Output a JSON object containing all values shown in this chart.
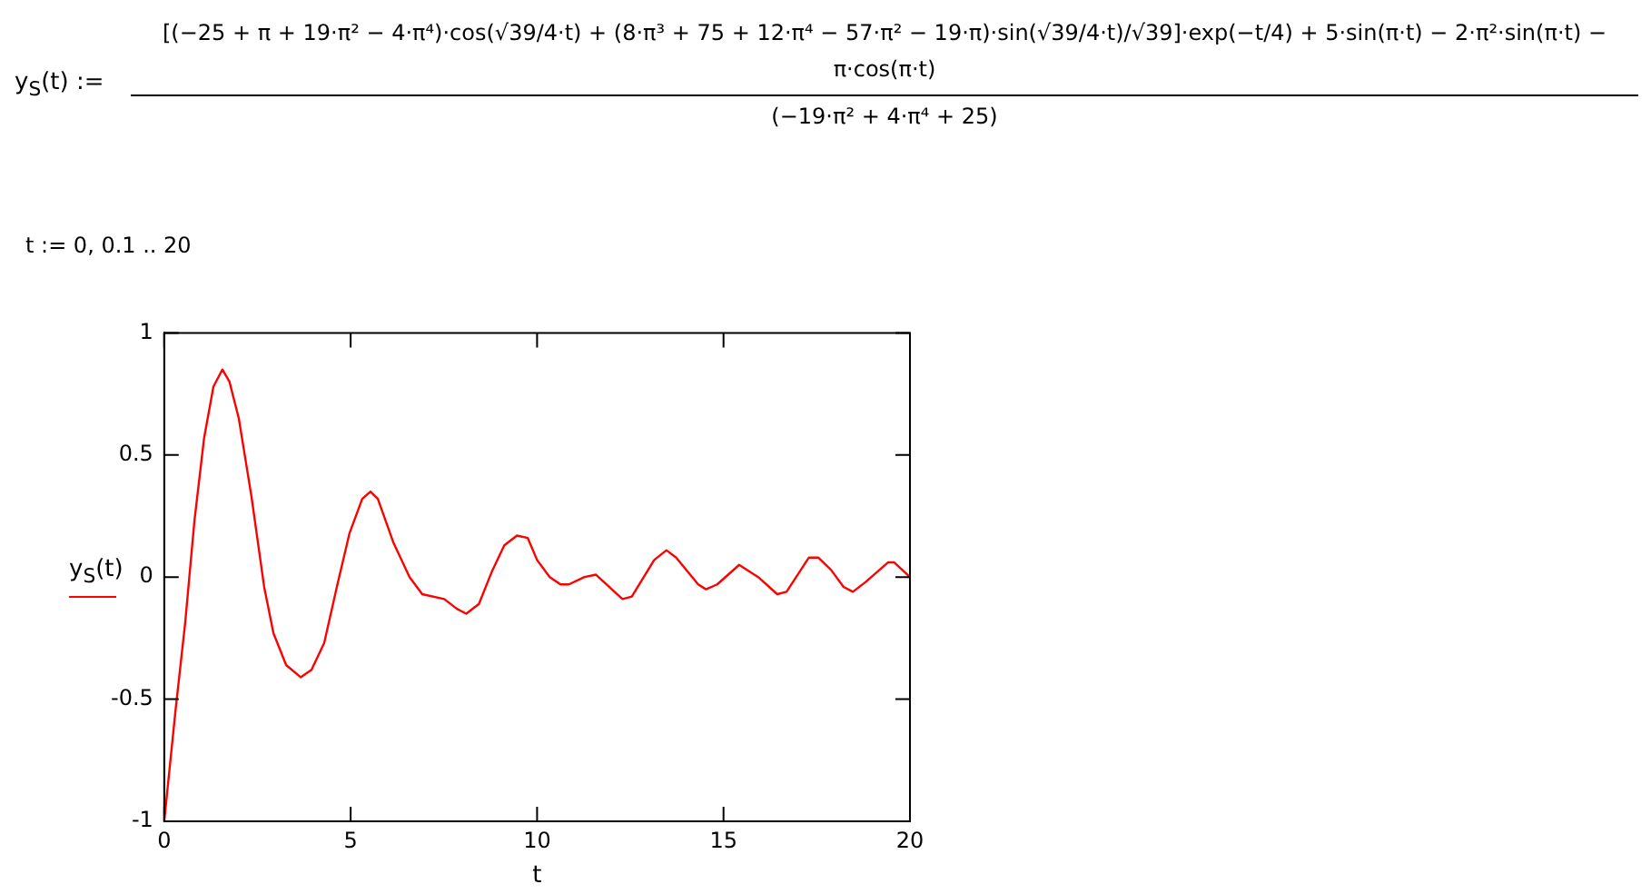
{
  "chart_data": {
    "type": "line",
    "annotations": [
      "y$_{S}$(t) :=",
      "[(−25 + π + 19·π² − 4·π⁴)·cos(√39/4·t) + (8·π³ + 75 + 12·π⁴ − 57·π² − 19·π)·sin(√39/4·t)/√39]·exp(−t/4) + 5·sin(π·t) − 2·π²·sin(π·t) − π·cos(π·t)",
      "(−19·π² + 4·π⁴ + 25)",
      "t := 0, 0.1 .. 20"
    ],
    "xlabel": "t",
    "legend": "left",
    "series": [
      {
        "name": "y$_{S}$(t)",
        "color": "#ff0000",
        "x": [
          0,
          0.3,
          0.56,
          0.81,
          1.07,
          1.32,
          1.56,
          1.75,
          2.0,
          2.34,
          2.68,
          2.93,
          3.27,
          3.66,
          3.95,
          4.29,
          4.63,
          4.97,
          5.31,
          5.53,
          5.73,
          6.15,
          6.58,
          6.92,
          7.51,
          7.85,
          8.1,
          8.44,
          8.78,
          9.12,
          9.46,
          9.75,
          10.0,
          10.34,
          10.63,
          10.85,
          11.27,
          11.58,
          12.29,
          12.54,
          13.14,
          13.47,
          13.73,
          14.32,
          14.53,
          14.83,
          15.42,
          15.93,
          16.44,
          16.69,
          17.29,
          17.54,
          17.88,
          18.22,
          18.47,
          18.81,
          19.41,
          19.58,
          20
        ],
        "values": [
          -1,
          -0.55,
          -0.19,
          0.23,
          0.57,
          0.78,
          0.85,
          0.8,
          0.65,
          0.33,
          -0.04,
          -0.23,
          -0.36,
          -0.41,
          -0.38,
          -0.27,
          -0.04,
          0.18,
          0.32,
          0.35,
          0.32,
          0.14,
          0,
          -0.07,
          -0.09,
          -0.13,
          -0.15,
          -0.11,
          0.02,
          0.13,
          0.17,
          0.16,
          0.07,
          0,
          -0.03,
          -0.03,
          0,
          0.01,
          -0.09,
          -0.08,
          0.07,
          0.11,
          0.08,
          -0.03,
          -0.05,
          -0.03,
          0.05,
          0,
          -0.07,
          -0.06,
          0.08,
          0.08,
          0.03,
          -0.04,
          -0.06,
          -0.02,
          0.06,
          0.06,
          0
        ]
      }
    ],
    "xlim": [
      0,
      20
    ],
    "xticks": [
      0,
      5,
      10,
      15,
      20
    ],
    "ylim": [
      -1,
      1
    ],
    "yticks": [
      -1,
      -0.5,
      0,
      0.5,
      1
    ],
    "grid": false,
    "marker": "none",
    "line_style": "solid"
  }
}
